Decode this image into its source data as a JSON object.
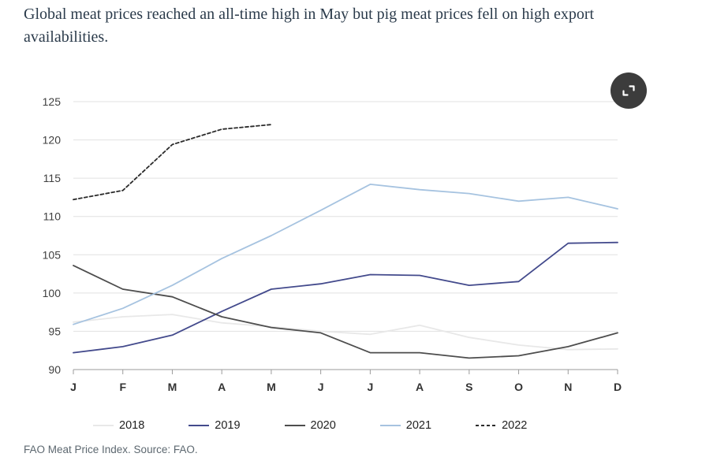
{
  "header": {
    "title": "Global meat prices reached an all-time high in May but pig meat prices fell on high export availabilities."
  },
  "controls": {
    "expand_button": "expand-chart"
  },
  "footer": {
    "source_note": "FAO Meat Price Index. Source: FAO."
  },
  "chart_data": {
    "type": "line",
    "title": "FAO Meat Price Index",
    "xlabel": "",
    "ylabel": "",
    "x": [
      "J",
      "F",
      "M",
      "A",
      "M",
      "J",
      "J",
      "A",
      "S",
      "O",
      "N",
      "D"
    ],
    "ylim": [
      90,
      125
    ],
    "yticks": [
      90,
      95,
      100,
      105,
      110,
      115,
      120,
      125
    ],
    "grid": true,
    "legend_position": "bottom",
    "series": [
      {
        "name": "2018",
        "color": "#e8e8e8",
        "dash": null,
        "values": [
          96.2,
          96.9,
          97.2,
          96.1,
          95.6,
          95.0,
          94.6,
          95.8,
          94.2,
          93.2,
          92.6,
          92.7
        ]
      },
      {
        "name": "2019",
        "color": "#434a8c",
        "dash": null,
        "values": [
          92.2,
          93.0,
          94.5,
          97.6,
          100.5,
          101.2,
          102.4,
          102.3,
          101.0,
          101.5,
          106.5,
          106.6
        ]
      },
      {
        "name": "2020",
        "color": "#4d4d4d",
        "dash": null,
        "values": [
          103.6,
          100.5,
          99.5,
          96.9,
          95.5,
          94.8,
          92.2,
          92.2,
          91.5,
          91.8,
          93.0,
          94.8
        ]
      },
      {
        "name": "2021",
        "color": "#a6c3e0",
        "dash": null,
        "values": [
          95.9,
          98.0,
          101.0,
          104.5,
          107.5,
          110.8,
          114.2,
          113.5,
          113.0,
          112.0,
          112.5,
          111.0
        ]
      },
      {
        "name": "2022",
        "color": "#2b2b2b",
        "dash": "4 3",
        "values": [
          112.2,
          113.4,
          119.4,
          121.4,
          122.0,
          null,
          null,
          null,
          null,
          null,
          null,
          null
        ]
      }
    ]
  }
}
